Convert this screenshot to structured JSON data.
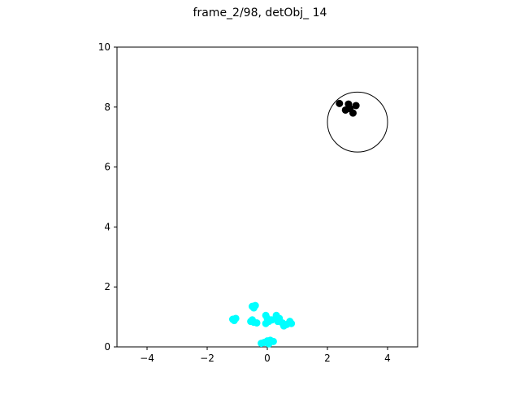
{
  "chart_data": {
    "type": "scatter",
    "title": "frame_2/98, detObj_ 14",
    "xlabel": "",
    "ylabel": "",
    "xlim": [
      -5,
      5
    ],
    "ylim": [
      0,
      10
    ],
    "xticks": [
      -4,
      -2,
      0,
      2,
      4
    ],
    "yticks": [
      0,
      2,
      4,
      6,
      8,
      10
    ],
    "grid": false,
    "series": [
      {
        "color": "#00ffff",
        "marker": "circle",
        "points": [
          [
            -1.15,
            0.92
          ],
          [
            -1.05,
            0.95
          ],
          [
            -1.1,
            0.88
          ],
          [
            -0.5,
            1.35
          ],
          [
            -0.4,
            1.38
          ],
          [
            -0.45,
            1.3
          ],
          [
            -0.55,
            0.85
          ],
          [
            -0.45,
            0.82
          ],
          [
            -0.35,
            0.8
          ],
          [
            -0.5,
            0.9
          ],
          [
            -0.05,
            1.05
          ],
          [
            0.0,
            0.95
          ],
          [
            0.05,
            0.85
          ],
          [
            -0.05,
            0.78
          ],
          [
            0.15,
            0.9
          ],
          [
            0.3,
            1.05
          ],
          [
            0.4,
            0.95
          ],
          [
            0.35,
            0.85
          ],
          [
            0.5,
            0.8
          ],
          [
            0.55,
            0.7
          ],
          [
            0.65,
            0.75
          ],
          [
            0.75,
            0.85
          ],
          [
            0.8,
            0.78
          ],
          [
            -0.2,
            0.12
          ],
          [
            -0.1,
            0.15
          ],
          [
            0.0,
            0.2
          ],
          [
            0.1,
            0.22
          ],
          [
            0.2,
            0.18
          ],
          [
            0.05,
            0.1
          ]
        ]
      },
      {
        "color": "#000000",
        "marker": "circle",
        "points": [
          [
            2.4,
            8.12
          ],
          [
            2.7,
            8.1
          ],
          [
            2.6,
            7.9
          ],
          [
            2.85,
            7.8
          ],
          [
            2.95,
            8.05
          ],
          [
            2.75,
            7.95
          ]
        ]
      }
    ],
    "annotations": [
      {
        "type": "circle",
        "center": [
          3.0,
          7.5
        ],
        "radius": 1.0,
        "color": "#000000"
      }
    ]
  }
}
